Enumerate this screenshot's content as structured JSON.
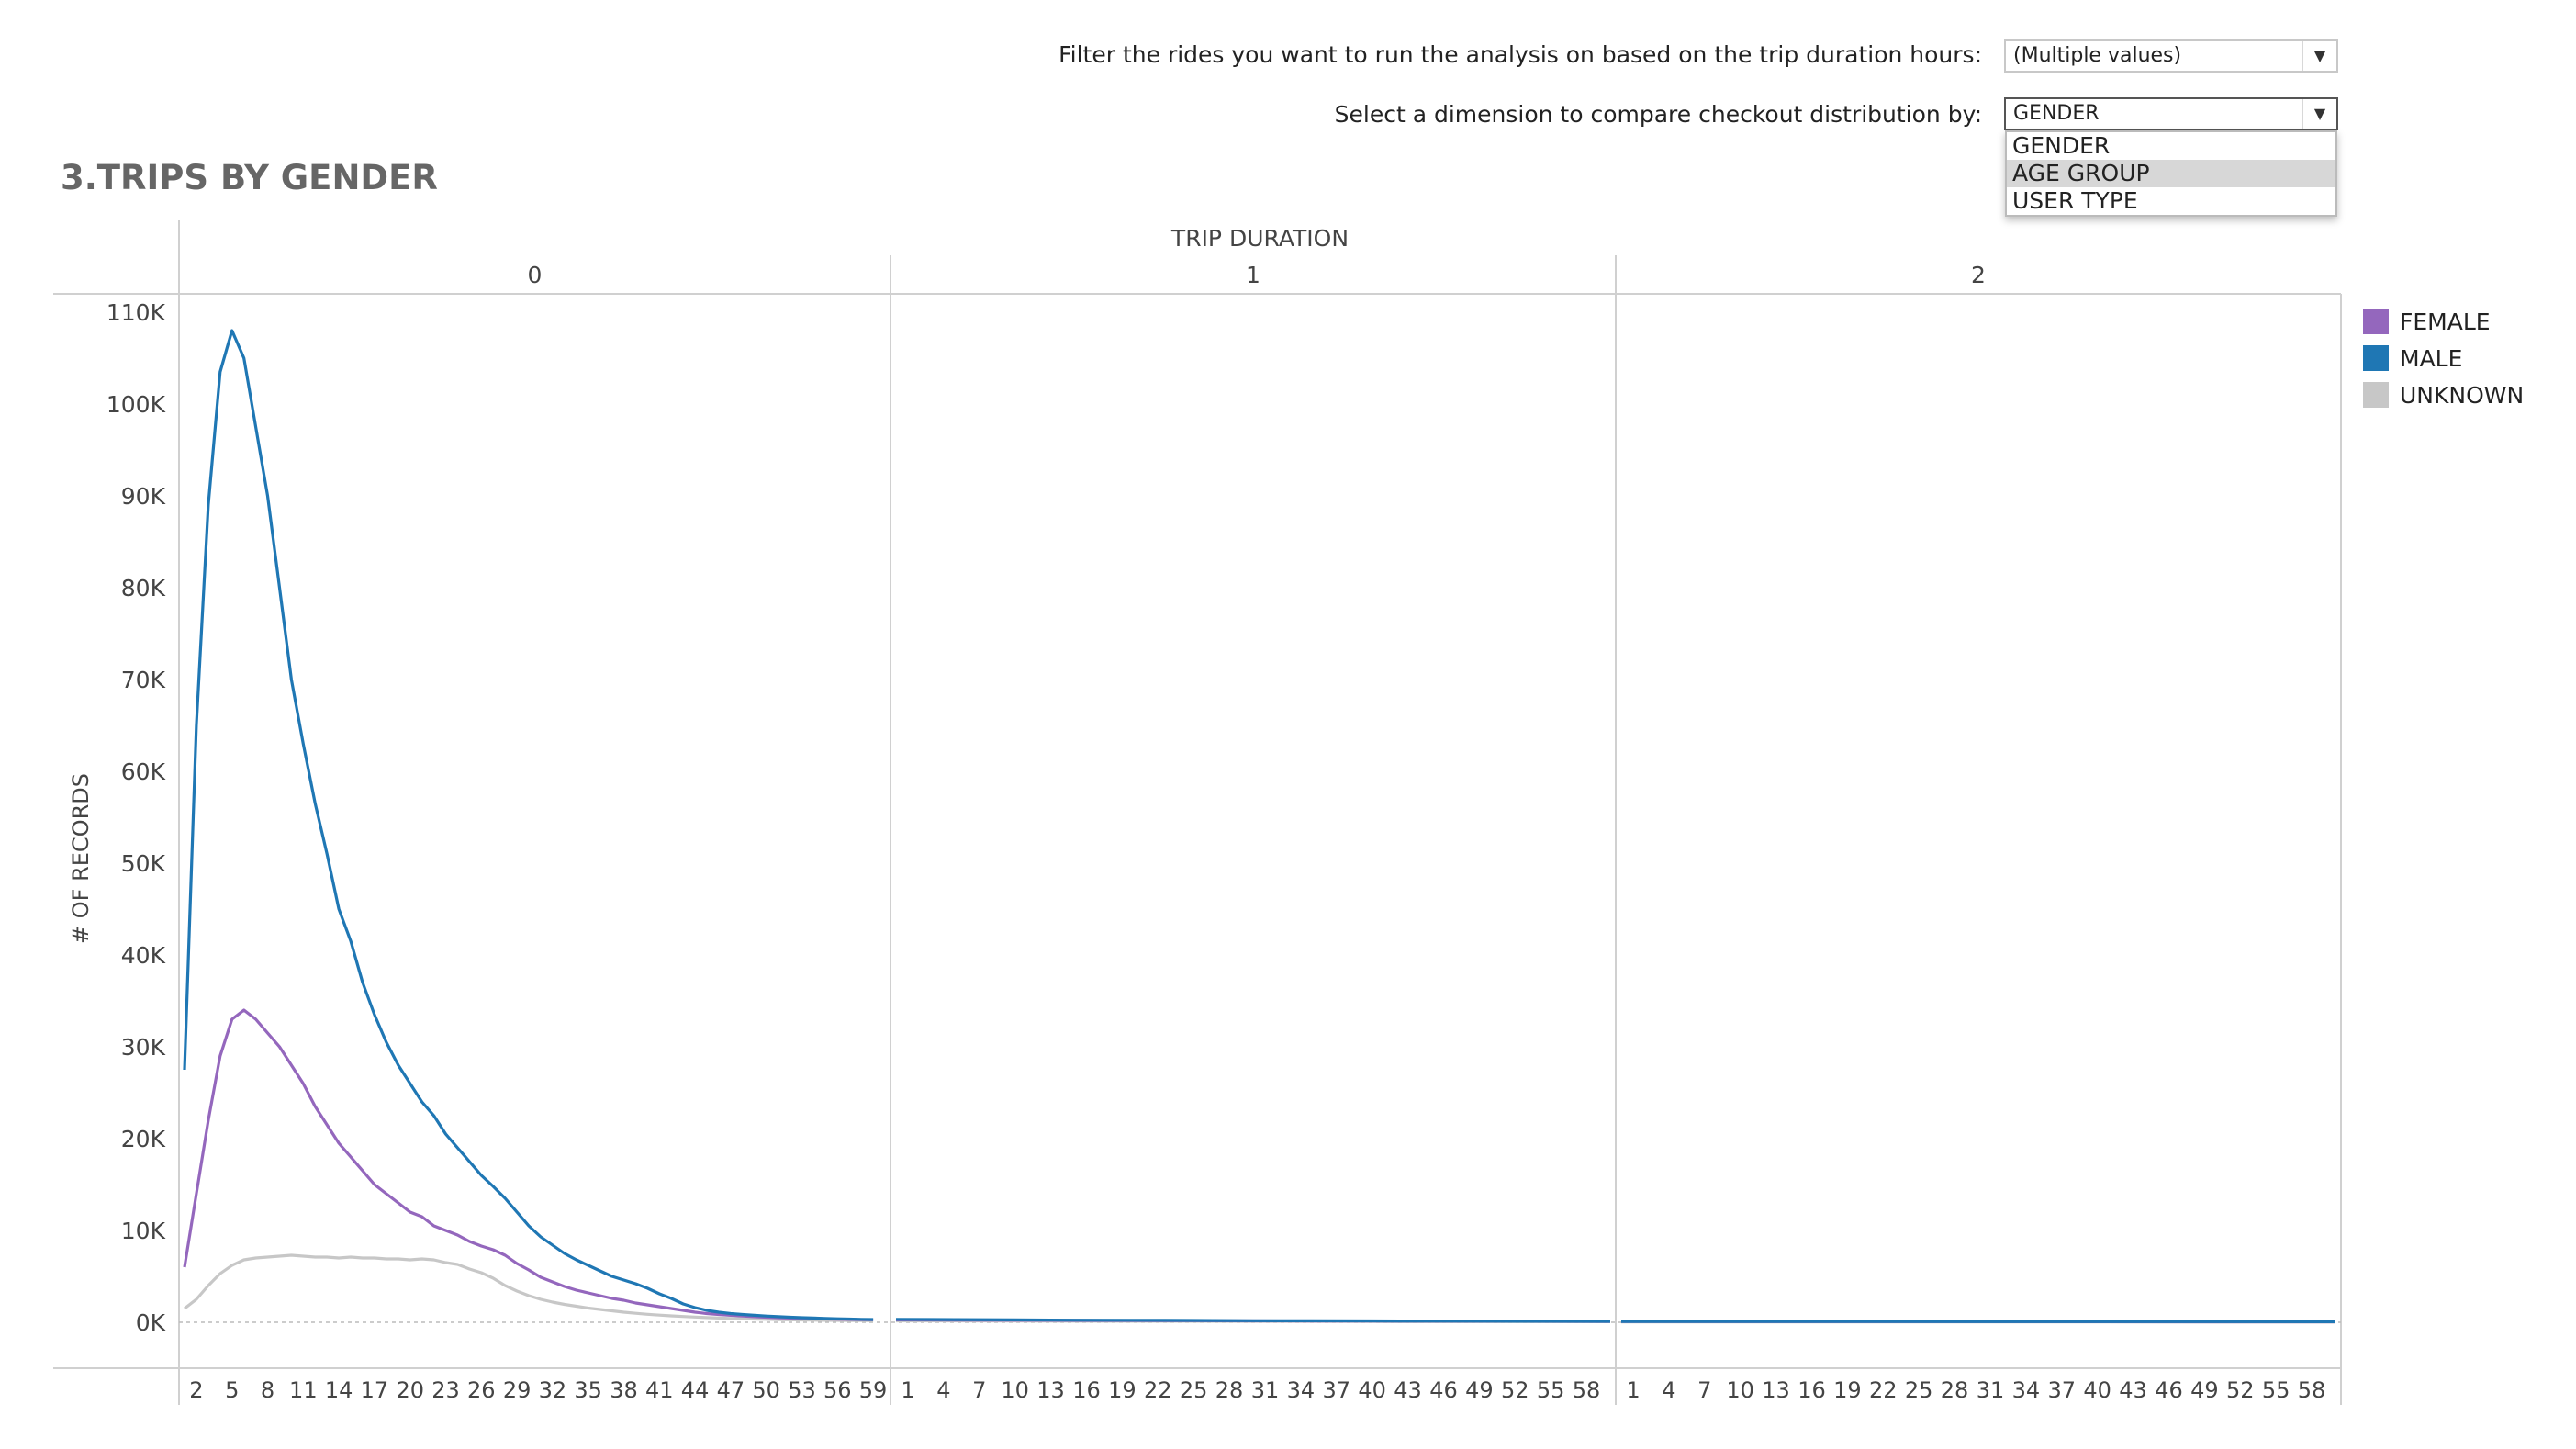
{
  "filters": {
    "duration_label": "Filter the rides you want to run the analysis on based on the trip duration hours:",
    "duration_value": "(Multiple values)",
    "dimension_label": "Select a dimension to compare checkout distribution by:",
    "dimension_value": "GENDER",
    "dimension_options": [
      "GENDER",
      "AGE GROUP",
      "USER TYPE"
    ],
    "highlighted_option": "AGE GROUP"
  },
  "chart_title": "3.TRIPS BY GENDER",
  "chart_data": {
    "type": "line",
    "title": "3.TRIPS BY GENDER",
    "column_header": "TRIP DURATION",
    "panes": [
      "0",
      "1",
      "2"
    ],
    "xlabel": "",
    "ylabel": "# OF RECORDS",
    "ylim": [
      -5000,
      112000
    ],
    "y_ticks": [
      0,
      10000,
      20000,
      30000,
      40000,
      50000,
      60000,
      70000,
      80000,
      90000,
      100000,
      110000
    ],
    "y_tick_labels": [
      "0K",
      "10K",
      "20K",
      "30K",
      "40K",
      "50K",
      "60K",
      "70K",
      "80K",
      "90K",
      "100K",
      "110K"
    ],
    "pane_x_range": [
      [
        1,
        60
      ],
      [
        0,
        60
      ],
      [
        0,
        60
      ]
    ],
    "pane_tick_labels": [
      [
        "2",
        "5",
        "8",
        "11",
        "14",
        "17",
        "20",
        "23",
        "26",
        "29",
        "32",
        "35",
        "38",
        "41",
        "44",
        "47",
        "50",
        "53",
        "56",
        "59"
      ],
      [
        "1",
        "4",
        "7",
        "10",
        "13",
        "16",
        "19",
        "22",
        "25",
        "28",
        "31",
        "34",
        "37",
        "40",
        "43",
        "46",
        "49",
        "52",
        "55",
        "58"
      ],
      [
        "1",
        "4",
        "7",
        "10",
        "13",
        "16",
        "19",
        "22",
        "25",
        "28",
        "31",
        "34",
        "37",
        "40",
        "43",
        "46",
        "49",
        "52",
        "55",
        "58"
      ]
    ],
    "pane_tick_values": [
      [
        2,
        5,
        8,
        11,
        14,
        17,
        20,
        23,
        26,
        29,
        32,
        35,
        38,
        41,
        44,
        47,
        50,
        53,
        56,
        59
      ],
      [
        1,
        4,
        7,
        10,
        13,
        16,
        19,
        22,
        25,
        28,
        31,
        34,
        37,
        40,
        43,
        46,
        49,
        52,
        55,
        58
      ],
      [
        1,
        4,
        7,
        10,
        13,
        16,
        19,
        22,
        25,
        28,
        31,
        34,
        37,
        40,
        43,
        46,
        49,
        52,
        55,
        58
      ]
    ],
    "legend_position": "right",
    "series": [
      {
        "name": "FEMALE",
        "color": "#9467bd",
        "panes": [
          {
            "x": [
              1,
              2,
              3,
              4,
              5,
              6,
              7,
              8,
              9,
              10,
              11,
              12,
              13,
              14,
              15,
              16,
              17,
              18,
              19,
              20,
              21,
              22,
              23,
              24,
              25,
              26,
              27,
              28,
              29,
              30,
              31,
              32,
              33,
              34,
              35,
              36,
              37,
              38,
              39,
              40,
              41,
              42,
              43,
              44,
              45,
              46,
              47,
              48,
              49,
              50,
              51,
              52,
              53,
              54,
              55,
              56,
              57,
              58,
              59
            ],
            "y": [
              6000,
              14000,
              22000,
              29000,
              33000,
              34000,
              33000,
              31500,
              30000,
              28000,
              26000,
              23500,
              21500,
              19500,
              18000,
              16500,
              15000,
              14000,
              13000,
              12000,
              11500,
              10500,
              10000,
              9500,
              8800,
              8300,
              7900,
              7300,
              6400,
              5700,
              4900,
              4400,
              3900,
              3500,
              3200,
              2900,
              2600,
              2400,
              2100,
              1900,
              1700,
              1500,
              1300,
              1100,
              950,
              850,
              760,
              680,
              610,
              550,
              500,
              460,
              420,
              390,
              360,
              330,
              310,
              290,
              270
            ]
          },
          {
            "x": [
              0,
              5,
              10,
              15,
              20,
              25,
              30,
              35,
              40,
              45,
              50,
              55,
              60
            ],
            "y": [
              260,
              240,
              220,
              200,
              185,
              170,
              155,
              140,
              130,
              120,
              110,
              100,
              90
            ]
          },
          {
            "x": [
              0,
              10,
              20,
              30,
              40,
              50,
              60
            ],
            "y": [
              80,
              75,
              70,
              65,
              60,
              55,
              50
            ]
          }
        ]
      },
      {
        "name": "MALE",
        "color": "#1f77b4",
        "panes": [
          {
            "x": [
              1,
              2,
              3,
              4,
              5,
              6,
              7,
              8,
              9,
              10,
              11,
              12,
              13,
              14,
              15,
              16,
              17,
              18,
              19,
              20,
              21,
              22,
              23,
              24,
              25,
              26,
              27,
              28,
              29,
              30,
              31,
              32,
              33,
              34,
              35,
              36,
              37,
              38,
              39,
              40,
              41,
              42,
              43,
              44,
              45,
              46,
              47,
              48,
              49,
              50,
              51,
              52,
              53,
              54,
              55,
              56,
              57,
              58,
              59
            ],
            "y": [
              27500,
              65000,
              89000,
              103500,
              108000,
              105000,
              97500,
              90000,
              80000,
              70000,
              63000,
              56500,
              51000,
              45000,
              41500,
              37000,
              33500,
              30500,
              28000,
              26000,
              24000,
              22500,
              20500,
              19000,
              17500,
              16000,
              14800,
              13500,
              12000,
              10500,
              9300,
              8400,
              7500,
              6800,
              6200,
              5600,
              5000,
              4600,
              4200,
              3700,
              3100,
              2600,
              2000,
              1600,
              1300,
              1100,
              950,
              850,
              760,
              680,
              610,
              550,
              500,
              460,
              420,
              380,
              350,
              320,
              300
            ]
          },
          {
            "x": [
              0,
              5,
              10,
              15,
              20,
              25,
              30,
              35,
              40,
              45,
              50,
              55,
              60
            ],
            "y": [
              320,
              290,
              260,
              235,
              215,
              195,
              175,
              160,
              145,
              130,
              120,
              110,
              100
            ]
          },
          {
            "x": [
              0,
              10,
              20,
              30,
              40,
              50,
              60
            ],
            "y": [
              90,
              85,
              80,
              75,
              70,
              65,
              60
            ]
          }
        ]
      },
      {
        "name": "UNKNOWN",
        "color": "#c7c7c7",
        "panes": [
          {
            "x": [
              1,
              2,
              3,
              4,
              5,
              6,
              7,
              8,
              9,
              10,
              11,
              12,
              13,
              14,
              15,
              16,
              17,
              18,
              19,
              20,
              21,
              22,
              23,
              24,
              25,
              26,
              27,
              28,
              29,
              30,
              31,
              32,
              33,
              34,
              35,
              36,
              37,
              38,
              39,
              40,
              41,
              42,
              43,
              44,
              45,
              46,
              47,
              48,
              49,
              50,
              51,
              52,
              53,
              54,
              55,
              56,
              57,
              58,
              59
            ],
            "y": [
              1500,
              2500,
              4000,
              5300,
              6200,
              6800,
              7000,
              7100,
              7200,
              7300,
              7200,
              7100,
              7100,
              7000,
              7100,
              7000,
              7000,
              6900,
              6900,
              6800,
              6900,
              6800,
              6500,
              6300,
              5800,
              5400,
              4800,
              4000,
              3400,
              2900,
              2500,
              2200,
              1950,
              1750,
              1550,
              1400,
              1250,
              1100,
              980,
              870,
              780,
              700,
              630,
              570,
              510,
              460,
              420,
              380,
              350,
              320,
              290,
              270,
              250,
              230,
              210,
              200,
              190,
              180,
              170
            ]
          },
          {
            "x": [
              0,
              10,
              20,
              30,
              40,
              50,
              60
            ],
            "y": [
              150,
              130,
              110,
              95,
              85,
              75,
              65
            ]
          },
          {
            "x": [
              0,
              20,
              40,
              60
            ],
            "y": [
              40,
              35,
              30,
              25
            ]
          }
        ]
      }
    ]
  }
}
